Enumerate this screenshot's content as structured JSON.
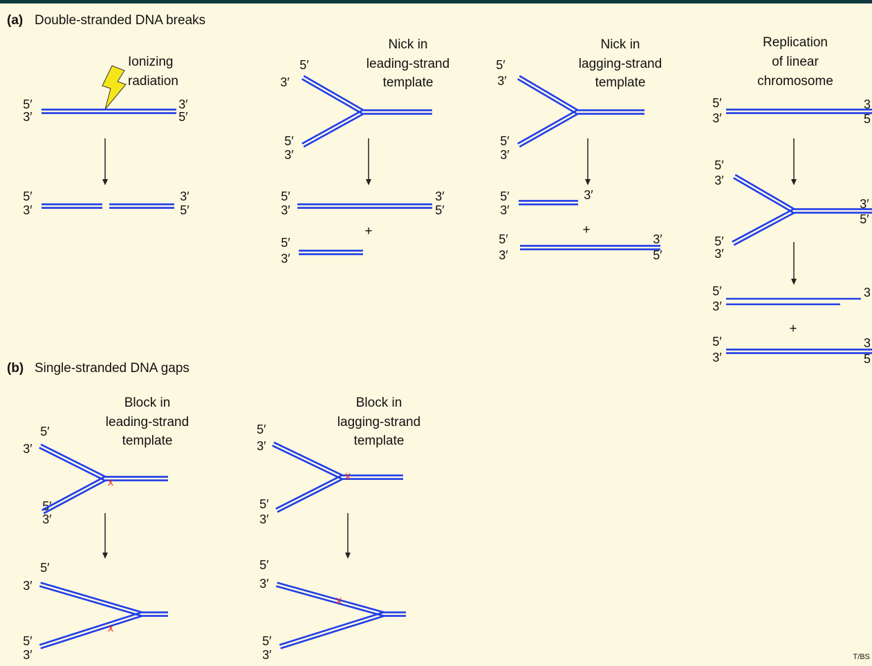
{
  "section_a": {
    "letter": "(a)",
    "heading": "Double-stranded DNA breaks",
    "panels": [
      {
        "caption": [
          "Ionizing",
          "radiation"
        ],
        "ends": [
          "5′",
          "3′",
          "3′",
          "5′",
          "5′",
          "3′",
          "3′",
          "5′"
        ]
      },
      {
        "caption": [
          "Nick in",
          "leading-strand",
          "template"
        ],
        "ends": [
          "5′",
          "3′",
          "5′",
          "3′",
          "5′",
          "3′",
          "3′",
          "5′",
          "5′",
          "3′"
        ],
        "plus": "+"
      },
      {
        "caption": [
          "Nick in",
          "lagging-strand",
          "template"
        ],
        "ends": [
          "5′",
          "3′",
          "5′",
          "3′",
          "5′",
          "3′",
          "3′",
          "5′",
          "3′",
          "3′",
          "5′"
        ],
        "plus": "+"
      },
      {
        "caption": [
          "Replication",
          "of linear",
          "chromosome"
        ],
        "ends": [
          "5′",
          "3′",
          "3",
          "5",
          "5′",
          "3′",
          "3′",
          "5′",
          "5′",
          "3′",
          "5′",
          "3′",
          "3",
          "5′",
          "3′",
          "3",
          "5"
        ],
        "plus": "+"
      }
    ]
  },
  "section_b": {
    "letter": "(b)",
    "heading": "Single-stranded DNA gaps",
    "panels": [
      {
        "caption": [
          "Block in",
          "leading-strand",
          "template"
        ],
        "ends": [
          "5′",
          "3′",
          "5′",
          "3′",
          "5′",
          "3′",
          "5′",
          "3′"
        ]
      },
      {
        "caption": [
          "Block in",
          "lagging-strand",
          "template"
        ],
        "ends": [
          "5′",
          "3′",
          "5′",
          "3′",
          "5′",
          "3′",
          "5′",
          "3′"
        ]
      }
    ]
  },
  "credit": "T/BS"
}
